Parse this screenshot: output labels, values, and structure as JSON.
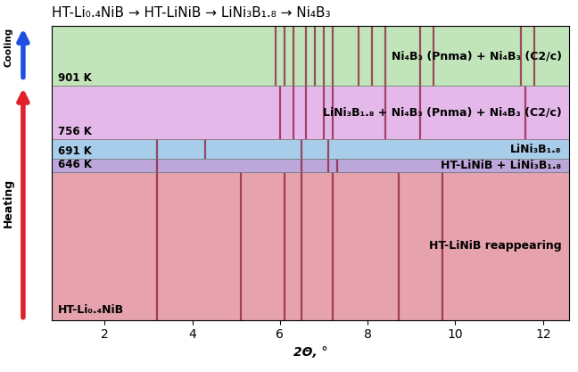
{
  "chart_data": {
    "type": "phase_map",
    "title": "HT-Li₀.₄NiB → HT-LiNiB → LiNi₃B₁.₈ → Ni₄B₃",
    "x_label": "2Θ, °",
    "xlim": [
      0.8,
      12.6
    ],
    "xticks": [
      2,
      4,
      6,
      8,
      10,
      12
    ],
    "ylim": [
      0,
      100
    ],
    "tick_labels": "x",
    "start_label": "HT-Li₀.₄NiB",
    "heating_label": "Heating",
    "cooling_label": "Cooling",
    "boundaries": [
      {
        "value": 50.4,
        "label": "646 K"
      },
      {
        "value": 54.8,
        "label": "691 K"
      },
      {
        "value": 61.4,
        "label": "756 K"
      },
      {
        "value": 79.7,
        "label": "901 K"
      }
    ],
    "bands": [
      {
        "start": 0,
        "end": 50.4,
        "label": "HT-LiNiB reappearing",
        "color": "#e6a3ad",
        "peaks": [
          3.2,
          5.1,
          6.1,
          6.5,
          7.2,
          8.7,
          9.7
        ]
      },
      {
        "start": 50.4,
        "end": 54.8,
        "label": "HT-LiNiB + LiNi₃B₁.₈",
        "color": "#bca6da",
        "peaks": [
          3.2,
          6.5,
          7.1,
          7.3
        ]
      },
      {
        "start": 54.8,
        "end": 61.4,
        "label": "LiNi₃B₁.₈",
        "color": "#a8cdea",
        "peaks": [
          3.2,
          4.3,
          6.5,
          7.1
        ]
      },
      {
        "start": 61.4,
        "end": 79.7,
        "label": "LiNi₃B₁.₈ + Ni₄B₃ (Pnma) + Ni₄B₃ (C2/c)",
        "color": "#e4b9ea",
        "peaks": [
          6.0,
          6.3,
          6.6,
          7.0,
          7.2,
          8.4,
          9.2,
          11.6
        ]
      },
      {
        "start": 79.7,
        "end": 100,
        "label": "Ni₄B₃ (Pnma) + Ni₄B₃ (C2/c)",
        "color": "#c2e4bb",
        "peaks": [
          5.9,
          6.1,
          6.3,
          6.6,
          6.8,
          7.0,
          7.2,
          7.8,
          8.1,
          8.4,
          9.2,
          9.5,
          11.5,
          11.8
        ]
      }
    ]
  }
}
